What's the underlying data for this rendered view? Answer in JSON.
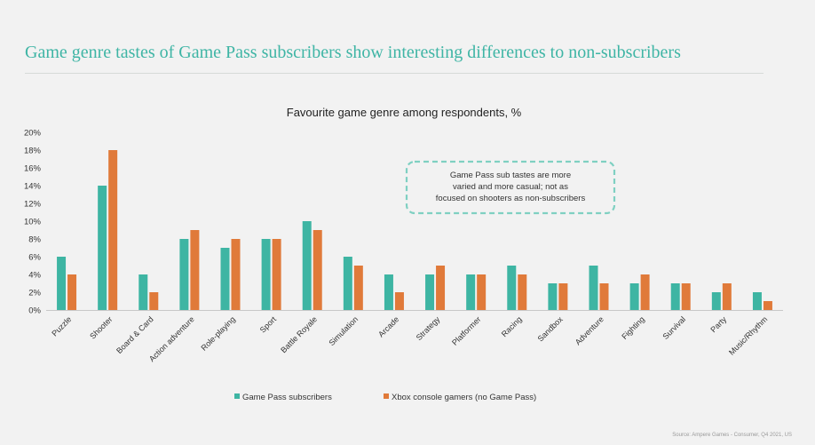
{
  "slide": {
    "title": "Game genre tastes of Game Pass subscribers show interesting differences to non-subscribers",
    "source": "Source: Ampere Games - Consumer, Q4 2021, US"
  },
  "colors": {
    "accent": "#3fb5a5",
    "series1": "#3eb5a3",
    "series2": "#e07a3a"
  },
  "chart_data": {
    "type": "bar",
    "title": "Favourite game genre among respondents, %",
    "categories": [
      "Puzzle",
      "Shooter",
      "Board & Card",
      "Action adventure",
      "Role-playing",
      "Sport",
      "Battle Royale",
      "Simulation",
      "Arcade",
      "Strategy",
      "Platformer",
      "Racing",
      "Sandbox",
      "Adventure",
      "Fighting",
      "Survival",
      "Party",
      "Music/Rhythm"
    ],
    "series": [
      {
        "name": "Game Pass subscribers",
        "values": [
          6,
          14,
          4,
          8,
          7,
          8,
          10,
          6,
          4,
          4,
          4,
          5,
          3,
          5,
          3,
          3,
          2,
          2
        ]
      },
      {
        "name": "Xbox console gamers (no Game Pass)",
        "values": [
          4,
          18,
          2,
          9,
          8,
          8,
          9,
          5,
          2,
          5,
          4,
          4,
          3,
          3,
          4,
          3,
          3,
          1
        ]
      }
    ],
    "ylim": [
      0,
      20
    ],
    "yticks": [
      "0%",
      "2%",
      "4%",
      "6%",
      "8%",
      "10%",
      "12%",
      "14%",
      "16%",
      "18%",
      "20%"
    ],
    "grid": false,
    "legend_position": "bottom",
    "annotation": "Game Pass sub tastes are more varied and more casual; not as focused on shooters as non-subscribers"
  }
}
